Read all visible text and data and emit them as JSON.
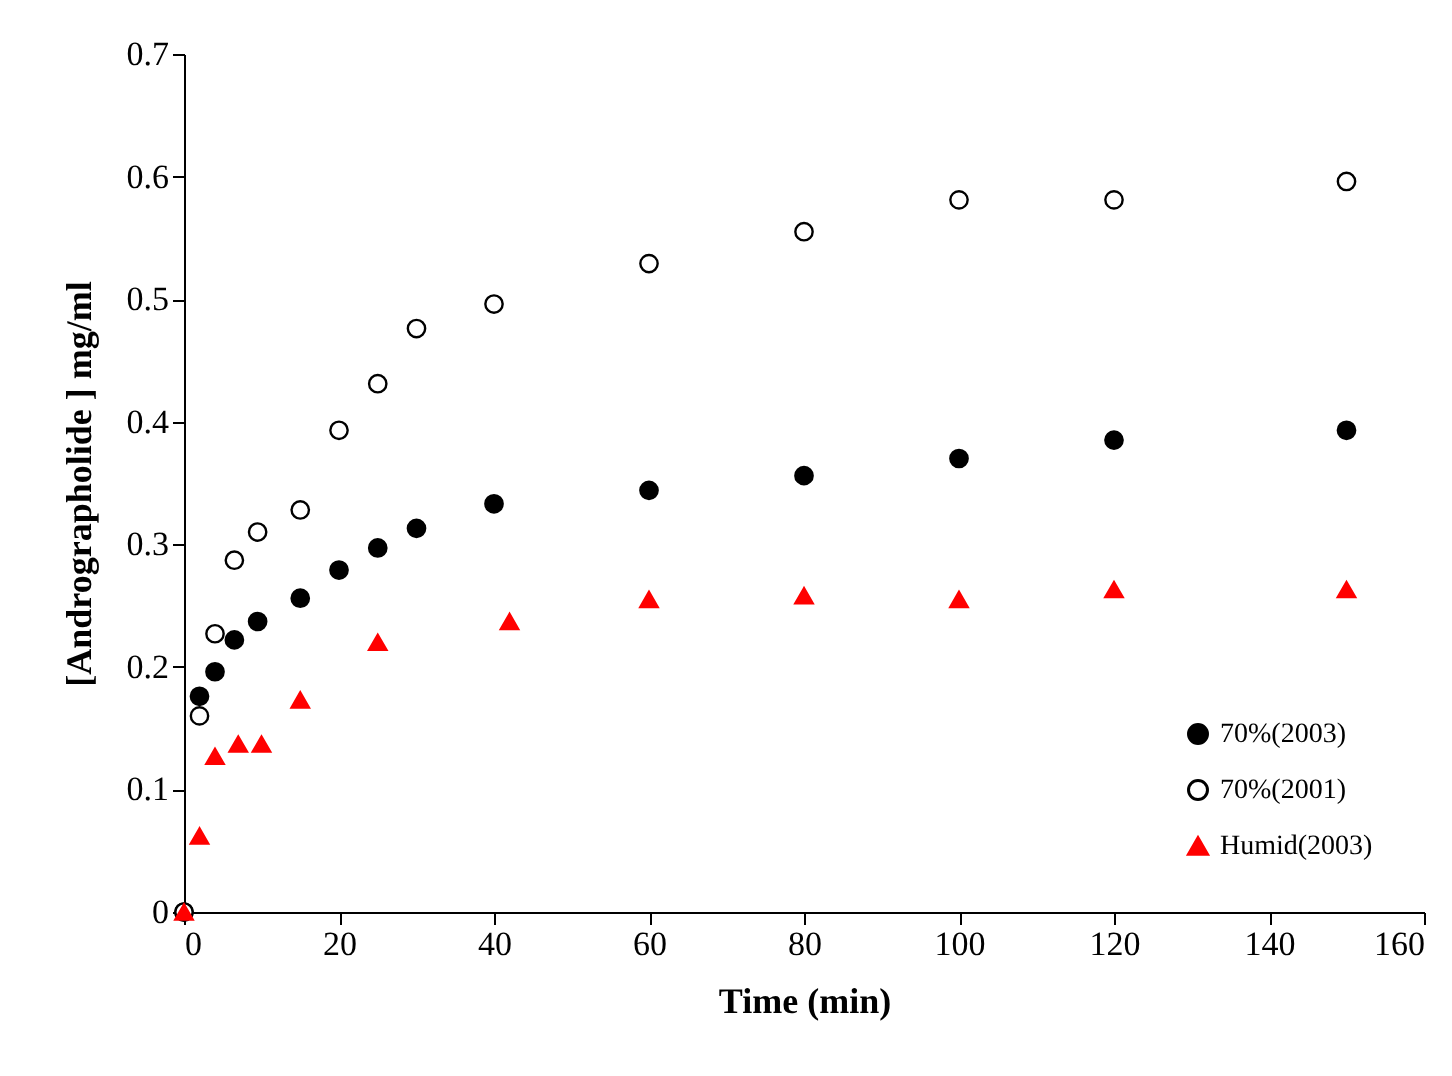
{
  "chart_data": {
    "type": "scatter",
    "xlabel": "Time (min)",
    "ylabel": "[Andrographolide ] mg/ml",
    "xlim": [
      0,
      160
    ],
    "xticks": [
      0,
      20,
      40,
      60,
      80,
      100,
      120,
      140,
      160
    ],
    "ylim": [
      0,
      0.7
    ],
    "yticks": [
      0,
      0.1,
      0.2,
      0.3,
      0.4,
      0.5,
      0.6,
      0.7
    ],
    "grid": false,
    "legend": "bottom right",
    "series": [
      {
        "name": "70%(2003)",
        "color": "#000000",
        "marker": "circle",
        "x": [
          0,
          2,
          4,
          6.5,
          9.5,
          15,
          20,
          25,
          30,
          40,
          60,
          80,
          100,
          120,
          150
        ],
        "values": [
          0,
          0.176,
          0.196,
          0.222,
          0.237,
          0.256,
          0.279,
          0.297,
          0.313,
          0.333,
          0.344,
          0.356,
          0.37,
          0.385,
          0.393
        ]
      },
      {
        "name": "70%(2001)",
        "color": "#ffffff",
        "marker": "circle",
        "x": [
          0,
          2,
          4,
          6.5,
          9.5,
          15,
          20,
          25,
          30,
          40,
          60,
          80,
          100,
          120,
          150
        ],
        "values": [
          0,
          0.16,
          0.227,
          0.287,
          0.31,
          0.328,
          0.393,
          0.431,
          0.476,
          0.496,
          0.529,
          0.555,
          0.581,
          0.581,
          0.596
        ]
      },
      {
        "name": "Humid(2003)",
        "color": "#ff0000",
        "marker": "triangle",
        "x": [
          0,
          2,
          4,
          7,
          10,
          15,
          25,
          42,
          60,
          80,
          100,
          120,
          150
        ],
        "values": [
          0,
          0.062,
          0.127,
          0.137,
          0.137,
          0.173,
          0.22,
          0.237,
          0.255,
          0.258,
          0.255,
          0.263,
          0.263
        ]
      }
    ]
  }
}
